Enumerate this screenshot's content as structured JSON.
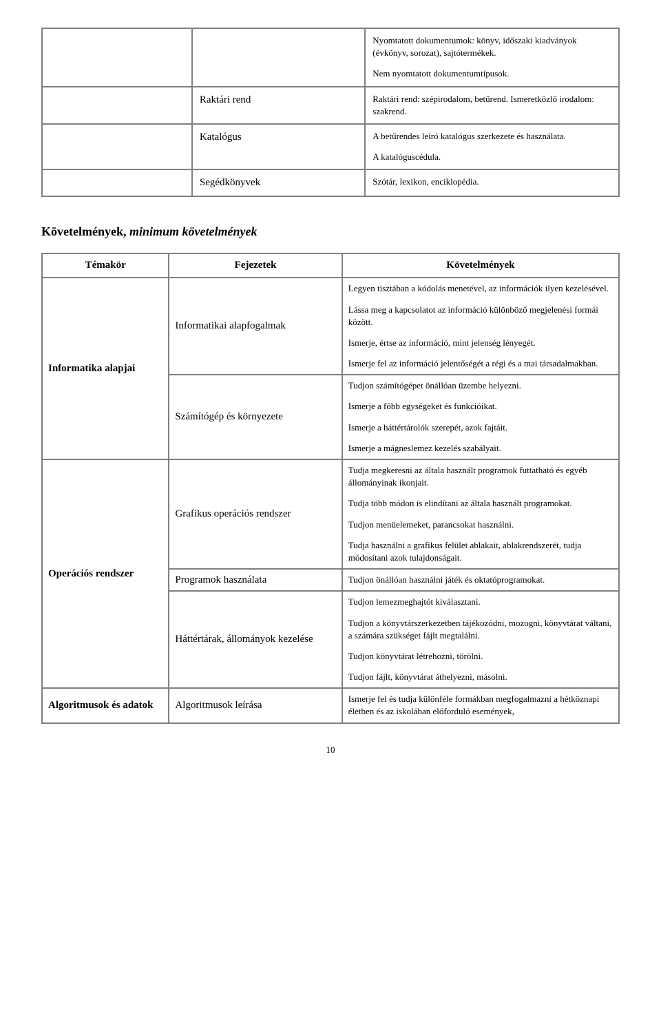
{
  "upper_table": {
    "rows": [
      {
        "col1": "",
        "col2": "",
        "col3": [
          "Nyomtatott dokumentumok: könyv, időszaki kiadványok (évkönyv, sorozat), sajtótermékek.",
          "Nem nyomtatott dokumentumtípusok."
        ]
      },
      {
        "col1": "",
        "col2": "Raktári rend",
        "col3": [
          "Raktári rend: szépirodalom, betűrend. Ismeretközlő irodalom: szakrend."
        ]
      },
      {
        "col1": "",
        "col2": "Katalógus",
        "col3": [
          "A betűrendes leíró katalógus szerkezete és használata.",
          "A katalóguscédula."
        ]
      },
      {
        "col1": "",
        "col2": "Segédkönyvek",
        "col3": [
          "Szótár, lexikon, enciklopédia."
        ]
      }
    ]
  },
  "requirements_heading": {
    "plain": "Követelmények, ",
    "italic": "minimum követelmények"
  },
  "req_headers": {
    "c1": "Témakör",
    "c2": "Fejezetek",
    "c3": "Követelmények"
  },
  "req_rows": [
    {
      "topic": "Informatika alapjai",
      "topic_rowspan": 2,
      "chapter": "Informatikai alapfogalmak",
      "reqs": [
        "Legyen tisztában a kódolás menetével, az információk ilyen kezelésével.",
        "Lássa meg a kapcsolatot az információ különböző megjelenési formái között.",
        "Ismerje, értse az információ, mint jelenség lényegét.",
        "Ismerje fel az információ jelentőségét a régi és a mai társadalmakban."
      ]
    },
    {
      "chapter": "Számítógép és környezete",
      "reqs": [
        "Tudjon számítógépet önállóan üzembe helyezni.",
        "Ismerje a főbb egységeket és funkcióikat.",
        "Ismerje a háttértárolók szerepét, azok fajtáit.",
        "Ismerje a mágneslemez kezelés szabályait."
      ]
    },
    {
      "topic": "Operációs rendszer",
      "topic_rowspan": 3,
      "chapter": "Grafikus operációs rendszer",
      "reqs": [
        "Tudja megkeresni az általa használt programok futtatható és egyéb állományinak ikonjait.",
        "Tudja több módon is elindítani az általa használt programokat.",
        "Tudjon menüelemeket, parancsokat használni.",
        "Tudja használni a grafikus felület ablakait, ablakrendszerét, tudja módosítani azok tulajdonságait."
      ]
    },
    {
      "chapter": "Programok használata",
      "reqs": [
        "Tudjon önállóan használni játék és oktatóprogramokat."
      ]
    },
    {
      "chapter": "Háttértárak, állományok kezelése",
      "reqs": [
        "Tudjon lemezmeghajtót kiválasztani.",
        "Tudjon a könyvtárszerkezetben tájékozódni, mozogni, könyvtárat váltani, a számára szükséget fájlt megtalálni.",
        "Tudjon könyvtárat létrehozni, törölni.",
        "Tudjon fájlt, könyvtárat áthelyezni, másolni."
      ]
    },
    {
      "topic": "Algoritmusok és adatok",
      "topic_rowspan": 1,
      "chapter": "Algoritmusok leírása",
      "reqs": [
        "Ismerje fel és tudja különféle formákban megfogalmazni a hétköznapi életben és az iskolában előforduló események,"
      ]
    }
  ],
  "page_number": "10",
  "colors": {
    "border": "#808080",
    "text": "#000000",
    "bg": "#ffffff"
  }
}
